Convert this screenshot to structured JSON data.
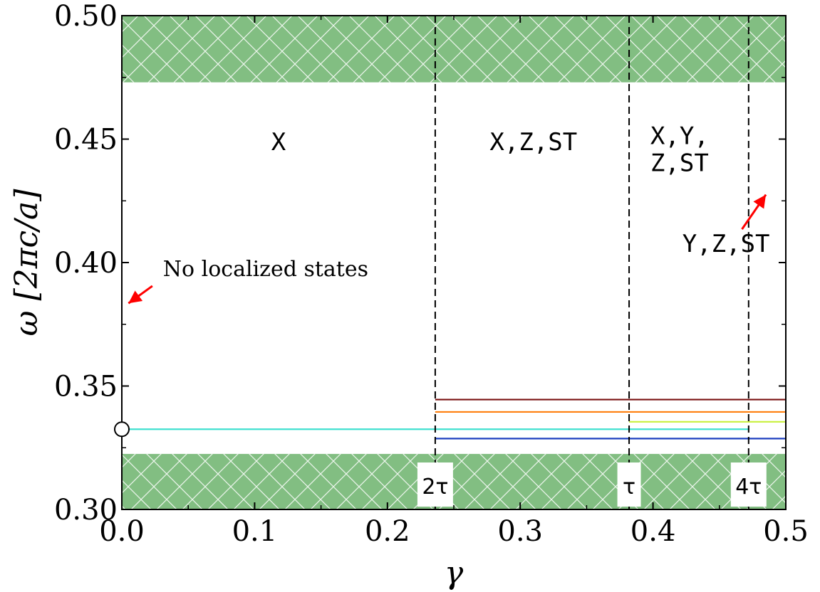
{
  "chart_data": {
    "type": "line",
    "xlabel": "γ",
    "ylabel": "ω [2πc/a]",
    "xlim": [
      0.0,
      0.5
    ],
    "ylim": [
      0.3,
      0.5
    ],
    "x_ticks": [
      "0.0",
      "0.1",
      "0.2",
      "0.3",
      "0.4",
      "0.5"
    ],
    "y_ticks": [
      "0.30",
      "0.35",
      "0.40",
      "0.45",
      "0.50"
    ],
    "grid": false,
    "band_regions": [
      {
        "y0": 0.473,
        "y1": 0.5,
        "color": "#82be82",
        "hatch": "cross"
      },
      {
        "y0": 0.3,
        "y1": 0.3225,
        "color": "#82be82",
        "hatch": "cross"
      }
    ],
    "vertical_lines": [
      {
        "x": 0.236,
        "label": "2τ"
      },
      {
        "x": 0.382,
        "label": "τ"
      },
      {
        "x": 0.472,
        "label": "4τ"
      }
    ],
    "series": [
      {
        "x": [
          0.0,
          0.472
        ],
        "y": [
          0.3325,
          0.3325
        ],
        "color": "#40e0d0"
      },
      {
        "x": [
          0.236,
          0.5
        ],
        "y": [
          0.3445,
          0.3445
        ],
        "color": "#7a1010"
      },
      {
        "x": [
          0.236,
          0.5
        ],
        "y": [
          0.3395,
          0.3395
        ],
        "color": "#ff7f0e"
      },
      {
        "x": [
          0.382,
          0.5
        ],
        "y": [
          0.3355,
          0.3355
        ],
        "color": "#c8f03c"
      },
      {
        "x": [
          0.236,
          0.5
        ],
        "y": [
          0.3287,
          0.3287
        ],
        "color": "#1f3fbf"
      }
    ],
    "origin_marker": {
      "x": 0.0,
      "y": 0.3325
    },
    "region_labels": [
      {
        "lines": [
          "X"
        ],
        "x": 0.118,
        "y": 0.4455
      },
      {
        "lines": [
          "X,Z,ST"
        ],
        "x": 0.31,
        "y": 0.4455
      },
      {
        "lines": [
          "X,Y,",
          "Z,ST"
        ],
        "x": 0.42,
        "y": 0.448
      },
      {
        "lines": [
          "Y,Z,ST"
        ],
        "x": 0.455,
        "y": 0.4043
      }
    ],
    "annotations": [
      {
        "text": "No localized states",
        "x": 0.031,
        "y": 0.3945,
        "arrow_from": [
          0.023,
          0.3905
        ],
        "arrow_to": [
          0.005,
          0.3835
        ]
      },
      {
        "text": "",
        "arrow_from": [
          0.467,
          0.4135
        ],
        "arrow_to": [
          0.485,
          0.4275
        ]
      }
    ]
  }
}
